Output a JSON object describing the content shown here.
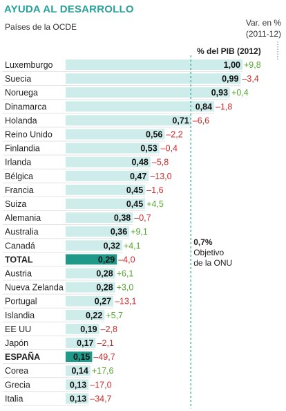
{
  "header": {
    "title": "AYUDA AL DESARROLLO",
    "subtitle": "Países de la OCDE",
    "var_label_line1": "Var. en %",
    "var_label_line2": "(2011-12)",
    "pct_label": "% del PIB (2012)"
  },
  "target": {
    "value_label": "0,7%",
    "line2": "Objetivo",
    "line3": "de la ONU"
  },
  "colors": {
    "bar": "#cdecea",
    "highlight_bar": "#1f9a8a",
    "positive": "#55a82f",
    "negative": "#cc2a2a",
    "title": "#2aa09a"
  },
  "chart_data": {
    "type": "bar",
    "orientation": "horizontal",
    "title": "AYUDA AL DESARROLLO",
    "subtitle": "Países de la OCDE",
    "value_axis": "% del PIB (2012)",
    "change_axis": "Var. en % (2011-12)",
    "reference_line": {
      "value": 0.7,
      "label": "0,7% Objetivo de la ONU"
    },
    "rows": [
      {
        "country": "Luxemburgo",
        "value": 1.0,
        "value_label": "1,00",
        "change": 9.8,
        "change_label": "+9,8"
      },
      {
        "country": "Suecia",
        "value": 0.99,
        "value_label": "0,99",
        "change": -3.4,
        "change_label": "–3,4"
      },
      {
        "country": "Noruega",
        "value": 0.93,
        "value_label": "0,93",
        "change": 0.4,
        "change_label": "+0,4"
      },
      {
        "country": "Dinamarca",
        "value": 0.84,
        "value_label": "0,84",
        "change": -1.8,
        "change_label": "–1,8"
      },
      {
        "country": "Holanda",
        "value": 0.71,
        "value_label": "0,71",
        "change": -6.6,
        "change_label": "–6,6"
      },
      {
        "country": "Reino Unido",
        "value": 0.56,
        "value_label": "0,56",
        "change": -2.2,
        "change_label": "–2,2"
      },
      {
        "country": "Finlandia",
        "value": 0.53,
        "value_label": "0,53",
        "change": -0.4,
        "change_label": "–0,4"
      },
      {
        "country": "Irlanda",
        "value": 0.48,
        "value_label": "0,48",
        "change": -5.8,
        "change_label": "–5,8"
      },
      {
        "country": "Bélgica",
        "value": 0.47,
        "value_label": "0,47",
        "change": -13.0,
        "change_label": "–13,0"
      },
      {
        "country": "Francia",
        "value": 0.45,
        "value_label": "0,45",
        "change": -1.6,
        "change_label": "–1,6"
      },
      {
        "country": "Suiza",
        "value": 0.45,
        "value_label": "0,45",
        "change": 4.5,
        "change_label": "+4,5"
      },
      {
        "country": "Alemania",
        "value": 0.38,
        "value_label": "0,38",
        "change": -0.7,
        "change_label": "–0,7"
      },
      {
        "country": "Australia",
        "value": 0.36,
        "value_label": "0,36",
        "change": 9.1,
        "change_label": "+9,1"
      },
      {
        "country": "Canadá",
        "value": 0.32,
        "value_label": "0,32",
        "change": 4.1,
        "change_label": "+4,1"
      },
      {
        "country": "TOTAL",
        "value": 0.29,
        "value_label": "0,29",
        "change": -4.0,
        "change_label": "–4,0",
        "highlight": true
      },
      {
        "country": "Austria",
        "value": 0.28,
        "value_label": "0,28",
        "change": 6.1,
        "change_label": "+6,1"
      },
      {
        "country": "Nueva Zelanda",
        "value": 0.28,
        "value_label": "0,28",
        "change": 3.0,
        "change_label": "+3,0"
      },
      {
        "country": "Portugal",
        "value": 0.27,
        "value_label": "0,27",
        "change": -13.1,
        "change_label": "–13,1"
      },
      {
        "country": "Islandia",
        "value": 0.22,
        "value_label": "0,22",
        "change": 5.7,
        "change_label": "+5,7"
      },
      {
        "country": "EE UU",
        "value": 0.19,
        "value_label": "0,19",
        "change": -2.8,
        "change_label": "–2,8"
      },
      {
        "country": "Japón",
        "value": 0.17,
        "value_label": "0,17",
        "change": -2.1,
        "change_label": "–2,1"
      },
      {
        "country": "ESPAÑA",
        "value": 0.15,
        "value_label": "0,15",
        "change": -49.7,
        "change_label": "–49,7",
        "highlight": true
      },
      {
        "country": "Corea",
        "value": 0.14,
        "value_label": "0,14",
        "change": 17.6,
        "change_label": "+17,6"
      },
      {
        "country": "Grecia",
        "value": 0.13,
        "value_label": "0,13",
        "change": -17.0,
        "change_label": "–17,0"
      },
      {
        "country": "Italia",
        "value": 0.13,
        "value_label": "0,13",
        "change": -34.7,
        "change_label": "–34,7"
      }
    ]
  }
}
